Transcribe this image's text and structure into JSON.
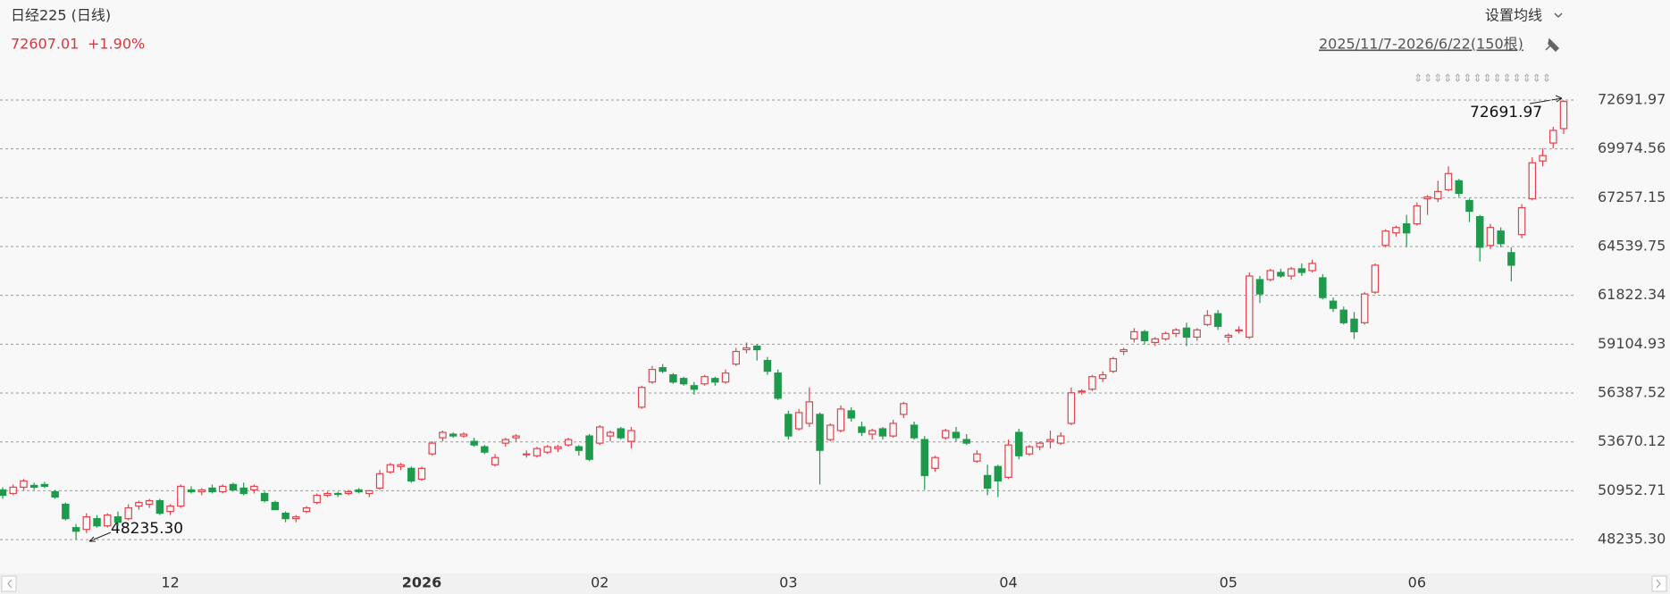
{
  "header": {
    "title": "日经225 (日线)",
    "last": "72607.01",
    "change": "+1.90%",
    "ma_setting": "设置均线",
    "range": "2025/11/7-2026/6/22(150根)"
  },
  "chart_data": {
    "type": "candlestick",
    "up_color": "#e0444c",
    "down_color": "#1f9a4d",
    "grid": true,
    "ylim": [
      46450,
      74280
    ],
    "yticks": [
      {
        "value": 48235.3,
        "label": "48235.30"
      },
      50952.71,
      53670.12,
      56387.52,
      59104.93,
      61822.34,
      64539.75,
      67257.15,
      69974.56,
      72691.97
    ],
    "annotations": [
      "72691.97",
      "48235.30"
    ],
    "categories": [
      null,
      null,
      null,
      null,
      null,
      null,
      null,
      null,
      null,
      null,
      null,
      null,
      null,
      null,
      null,
      null,
      "12",
      null,
      null,
      null,
      null,
      null,
      null,
      null,
      null,
      null,
      null,
      null,
      null,
      null,
      null,
      null,
      null,
      null,
      null,
      null,
      null,
      null,
      null,
      null,
      "2026",
      null,
      null,
      null,
      null,
      null,
      null,
      null,
      null,
      null,
      null,
      null,
      null,
      null,
      null,
      null,
      null,
      "02",
      null,
      null,
      null,
      null,
      null,
      null,
      null,
      null,
      null,
      null,
      null,
      null,
      null,
      null,
      null,
      null,
      null,
      "03",
      null,
      null,
      null,
      null,
      null,
      null,
      null,
      null,
      null,
      null,
      null,
      null,
      null,
      null,
      null,
      null,
      null,
      null,
      null,
      null,
      "04",
      null,
      null,
      null,
      null,
      null,
      null,
      null,
      null,
      null,
      null,
      null,
      null,
      null,
      null,
      null,
      null,
      null,
      null,
      null,
      null,
      "05",
      null,
      null,
      null,
      null,
      null,
      null,
      null,
      null,
      null,
      null,
      null,
      null,
      null,
      null,
      null,
      null,
      null,
      "06",
      null,
      null,
      null,
      null,
      null,
      null,
      null,
      null,
      null,
      null,
      null,
      null,
      null,
      null
    ],
    "values": [
      [
        51000,
        51150,
        50500,
        50700
      ],
      [
        50800,
        51300,
        50700,
        51150
      ],
      [
        51150,
        51600,
        51000,
        51500
      ],
      [
        51250,
        51400,
        51000,
        51150
      ],
      [
        51300,
        51450,
        51100,
        51200
      ],
      [
        50900,
        51000,
        50500,
        50600
      ],
      [
        50200,
        50300,
        49300,
        49400
      ],
      [
        48900,
        49100,
        48235.3,
        48700
      ],
      [
        48800,
        49700,
        48600,
        49500
      ],
      [
        49400,
        49600,
        48900,
        49000
      ],
      [
        49000,
        49700,
        48900,
        49600
      ],
      [
        49500,
        49800,
        49000,
        49200
      ],
      [
        49400,
        50200,
        49300,
        50000
      ],
      [
        50100,
        50400,
        49900,
        50300
      ],
      [
        50200,
        50500,
        50000,
        50400
      ],
      [
        50400,
        50500,
        49600,
        49700
      ],
      [
        49800,
        50200,
        49600,
        50100
      ],
      [
        50100,
        51300,
        50000,
        51200
      ],
      [
        51000,
        51200,
        50800,
        50900
      ],
      [
        50900,
        51100,
        50700,
        51000
      ],
      [
        51100,
        51300,
        50800,
        50900
      ],
      [
        50900,
        51300,
        50800,
        51200
      ],
      [
        51300,
        51400,
        50900,
        51000
      ],
      [
        51100,
        51400,
        50700,
        50800
      ],
      [
        51000,
        51300,
        50800,
        51200
      ],
      [
        50800,
        50900,
        50300,
        50400
      ],
      [
        50300,
        50400,
        49900,
        49900
      ],
      [
        49700,
        49800,
        49200,
        49400
      ],
      [
        49400,
        49600,
        49200,
        49500
      ],
      [
        49800,
        50100,
        49700,
        50000
      ],
      [
        50300,
        50800,
        50200,
        50700
      ],
      [
        50700,
        50900,
        50600,
        50800
      ],
      [
        50800,
        50900,
        50600,
        50750
      ],
      [
        50800,
        51000,
        50700,
        50900
      ],
      [
        51000,
        51100,
        50800,
        50900
      ],
      [
        50800,
        51000,
        50600,
        50950
      ],
      [
        51100,
        52100,
        51000,
        51900
      ],
      [
        52000,
        52500,
        51900,
        52400
      ],
      [
        52300,
        52500,
        52100,
        52400
      ],
      [
        52200,
        52300,
        51400,
        51500
      ],
      [
        51600,
        52300,
        51500,
        52200
      ],
      [
        53000,
        53700,
        52900,
        53600
      ],
      [
        53900,
        54300,
        53700,
        54200
      ],
      [
        54100,
        54200,
        53900,
        54000
      ],
      [
        54000,
        54200,
        53900,
        54100
      ],
      [
        53700,
        53900,
        53400,
        53500
      ],
      [
        53400,
        53500,
        53000,
        53100
      ],
      [
        52400,
        53000,
        52300,
        52800
      ],
      [
        53600,
        53900,
        53400,
        53800
      ],
      [
        53900,
        54100,
        53700,
        54000
      ],
      [
        53000,
        53200,
        52800,
        53000
      ],
      [
        52900,
        53400,
        52800,
        53300
      ],
      [
        53100,
        53500,
        53000,
        53400
      ],
      [
        53300,
        53500,
        53100,
        53400
      ],
      [
        53500,
        53900,
        53400,
        53800
      ],
      [
        53400,
        53500,
        52900,
        53200
      ],
      [
        54000,
        54100,
        52600,
        52700
      ],
      [
        53600,
        54600,
        53500,
        54500
      ],
      [
        54000,
        54300,
        53700,
        54200
      ],
      [
        54400,
        54500,
        53800,
        53900
      ],
      [
        53700,
        54500,
        53300,
        54300
      ],
      [
        55600,
        56800,
        55500,
        56700
      ],
      [
        57000,
        57900,
        56900,
        57700
      ],
      [
        57800,
        58000,
        57500,
        57600
      ],
      [
        57400,
        57500,
        56900,
        57000
      ],
      [
        57200,
        57300,
        56800,
        56900
      ],
      [
        56800,
        57000,
        56300,
        56600
      ],
      [
        56900,
        57400,
        56800,
        57300
      ],
      [
        57200,
        57300,
        56800,
        57000
      ],
      [
        57000,
        57700,
        56900,
        57500
      ],
      [
        58000,
        58900,
        57900,
        58700
      ],
      [
        58800,
        59200,
        58600,
        58900
      ],
      [
        59000,
        59100,
        58200,
        58800
      ],
      [
        58200,
        58400,
        57400,
        57600
      ],
      [
        57500,
        57700,
        56000,
        56100
      ],
      [
        55200,
        55400,
        53800,
        54000
      ],
      [
        54400,
        55500,
        54300,
        55300
      ],
      [
        54700,
        56700,
        54500,
        55900
      ],
      [
        55200,
        55300,
        51300,
        53200
      ],
      [
        53800,
        54700,
        53700,
        54600
      ],
      [
        54300,
        55700,
        54200,
        55500
      ],
      [
        55400,
        55600,
        54800,
        55000
      ],
      [
        54500,
        54800,
        54000,
        54200
      ],
      [
        54100,
        54400,
        53800,
        54300
      ],
      [
        54400,
        54500,
        53800,
        54000
      ],
      [
        54000,
        54900,
        53900,
        54700
      ],
      [
        55200,
        55900,
        55000,
        55800
      ],
      [
        54600,
        54800,
        53800,
        53900
      ],
      [
        53800,
        54000,
        51000,
        51800
      ],
      [
        52200,
        52900,
        52000,
        52800
      ],
      [
        53900,
        54400,
        53800,
        54300
      ],
      [
        54200,
        54500,
        53700,
        53900
      ],
      [
        53800,
        54100,
        53500,
        53600
      ],
      [
        52600,
        53200,
        52500,
        53000
      ],
      [
        51800,
        52400,
        50700,
        51100
      ],
      [
        52300,
        52400,
        50600,
        51500
      ],
      [
        51700,
        53800,
        51600,
        53500
      ],
      [
        54200,
        54400,
        52700,
        52900
      ],
      [
        53000,
        53500,
        52900,
        53400
      ],
      [
        53400,
        53700,
        53200,
        53600
      ],
      [
        53700,
        54300,
        53300,
        53800
      ],
      [
        53600,
        54200,
        53500,
        54000
      ],
      [
        54700,
        56700,
        54600,
        56400
      ],
      [
        56500,
        56600,
        56300,
        56500
      ],
      [
        56600,
        57400,
        56500,
        57300
      ],
      [
        57200,
        57600,
        57000,
        57400
      ],
      [
        57600,
        58400,
        57500,
        58300
      ],
      [
        58700,
        58900,
        58500,
        58800
      ],
      [
        59400,
        60000,
        59200,
        59800
      ],
      [
        59800,
        59900,
        59100,
        59300
      ],
      [
        59200,
        59500,
        59000,
        59400
      ],
      [
        59400,
        59800,
        59300,
        59700
      ],
      [
        59700,
        60000,
        59500,
        59900
      ],
      [
        60000,
        60300,
        59000,
        59500
      ],
      [
        59500,
        60000,
        59300,
        59900
      ],
      [
        60200,
        61000,
        60100,
        60700
      ],
      [
        60800,
        61000,
        59900,
        60100
      ],
      [
        59500,
        59700,
        59200,
        59600
      ],
      [
        59900,
        60100,
        59700,
        59900
      ],
      [
        59500,
        63100,
        59400,
        62900
      ],
      [
        62700,
        62900,
        61400,
        61900
      ],
      [
        62700,
        63300,
        62600,
        63200
      ],
      [
        63100,
        63300,
        62800,
        62900
      ],
      [
        62900,
        63400,
        62700,
        63300
      ],
      [
        63300,
        63600,
        62900,
        63100
      ],
      [
        63200,
        63800,
        63100,
        63600
      ],
      [
        62800,
        63000,
        61600,
        61700
      ],
      [
        61500,
        61700,
        60900,
        61100
      ],
      [
        61000,
        61200,
        60200,
        60300
      ],
      [
        60500,
        60900,
        59400,
        59800
      ],
      [
        60300,
        62000,
        60200,
        61900
      ],
      [
        62000,
        63600,
        61900,
        63500
      ],
      [
        64600,
        65500,
        64500,
        65400
      ],
      [
        65300,
        65700,
        65100,
        65600
      ],
      [
        65800,
        66300,
        64500,
        65300
      ],
      [
        65800,
        67000,
        65700,
        66800
      ],
      [
        67200,
        67400,
        66300,
        67300
      ],
      [
        67200,
        68200,
        67000,
        67600
      ],
      [
        67700,
        69000,
        67600,
        68600
      ],
      [
        68200,
        68300,
        67300,
        67500
      ],
      [
        67100,
        67200,
        65900,
        66500
      ],
      [
        66200,
        66300,
        63700,
        64500
      ],
      [
        64600,
        65800,
        64400,
        65600
      ],
      [
        65400,
        65600,
        64500,
        64700
      ],
      [
        64200,
        64500,
        62600,
        63500
      ],
      [
        65200,
        66900,
        65000,
        66700
      ],
      [
        67200,
        69500,
        67100,
        69200
      ],
      [
        69300,
        70000,
        69000,
        69600
      ],
      [
        70300,
        71200,
        70000,
        71000
      ],
      [
        71100,
        72691.97,
        70800,
        72607.01
      ]
    ]
  }
}
